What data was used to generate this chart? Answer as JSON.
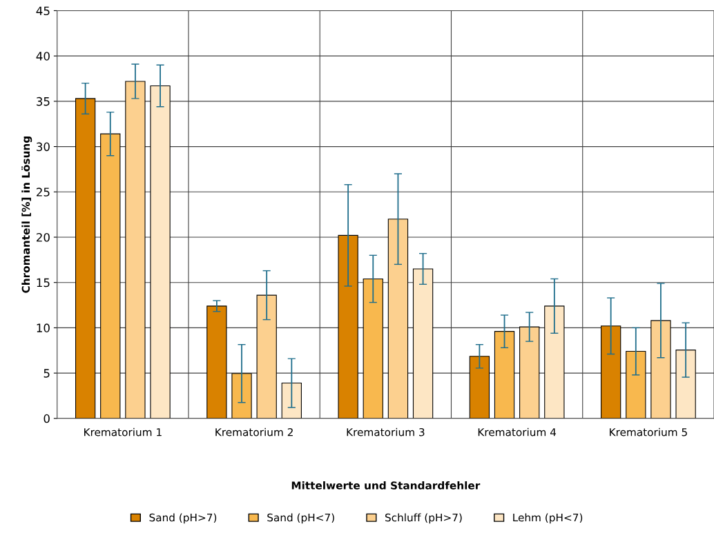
{
  "chart_data": {
    "type": "bar",
    "xlabel": "Mittelwerte und Standardfehler",
    "ylabel": "Chromanteil [%] in Lösung",
    "categories": [
      "Krematorium 1",
      "Krematorium 2",
      "Krematorium 3",
      "Krematorium 4",
      "Krematorium 5"
    ],
    "series": [
      {
        "name": "Sand (pH>7)",
        "color": "#d98200",
        "values": [
          35.3,
          12.4,
          20.2,
          6.85,
          10.2
        ],
        "errors": [
          1.7,
          0.6,
          5.6,
          1.3,
          3.1
        ]
      },
      {
        "name": "Sand (pH<7)",
        "color": "#f8b84e",
        "values": [
          31.4,
          4.95,
          15.4,
          9.6,
          7.4
        ],
        "errors": [
          2.4,
          3.2,
          2.6,
          1.8,
          2.6
        ]
      },
      {
        "name": "Schluff (pH>7)",
        "color": "#fcd08f",
        "values": [
          37.2,
          13.6,
          22.0,
          10.1,
          10.8
        ],
        "errors": [
          1.9,
          2.7,
          5.0,
          1.6,
          4.1
        ]
      },
      {
        "name": "Lehm (pH<7)",
        "color": "#fde6c4",
        "values": [
          36.7,
          3.9,
          16.5,
          12.4,
          7.55
        ],
        "errors": [
          2.3,
          2.7,
          1.7,
          3.0,
          3.0
        ]
      }
    ],
    "ylim": [
      0,
      45
    ],
    "yticks": [
      0,
      5,
      10,
      15,
      20,
      25,
      30,
      35,
      40,
      45
    ],
    "grid": true,
    "legend": "bottom"
  }
}
